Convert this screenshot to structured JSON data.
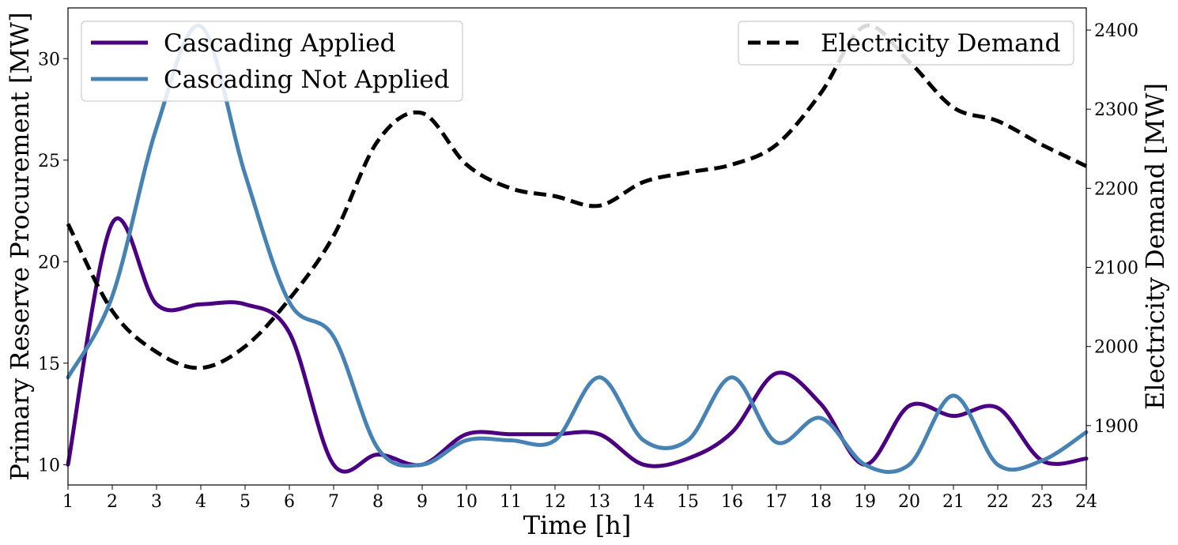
{
  "chart_data": {
    "type": "line",
    "xlabel": "Time [h]",
    "ylabel_left": "Primary Reserve Procurement [MW]",
    "ylabel_right": "Electricity Demand [MW]",
    "xlim": [
      1,
      24
    ],
    "ylim_left": [
      9,
      32.5
    ],
    "ylim_right": [
      1825,
      2428
    ],
    "x_ticks": [
      1,
      2,
      3,
      4,
      5,
      6,
      7,
      8,
      9,
      10,
      11,
      12,
      13,
      14,
      15,
      16,
      17,
      18,
      19,
      20,
      21,
      22,
      23,
      24
    ],
    "y_ticks_left": [
      10,
      15,
      20,
      25,
      30
    ],
    "y_ticks_right": [
      1900,
      2000,
      2100,
      2200,
      2300,
      2400
    ],
    "legend_left_position": "upper-left",
    "legend_right_position": "upper-right",
    "grid": false,
    "x": [
      1,
      2,
      3,
      4,
      5,
      6,
      7,
      8,
      9,
      10,
      11,
      12,
      13,
      14,
      15,
      16,
      17,
      18,
      19,
      20,
      21,
      22,
      23,
      24
    ],
    "series": [
      {
        "name": "Cascading Applied",
        "axis": "left",
        "color": "#4b0082",
        "style": "solid",
        "values": [
          10.0,
          21.9,
          17.9,
          17.9,
          17.9,
          16.5,
          10.0,
          10.5,
          10.0,
          11.5,
          11.5,
          11.5,
          11.5,
          10.0,
          10.3,
          11.6,
          14.5,
          13.0,
          10.0,
          12.9,
          12.4,
          12.8,
          10.2,
          10.3
        ]
      },
      {
        "name": "Cascading Not Applied",
        "axis": "left",
        "color": "#4682b4",
        "style": "solid",
        "values": [
          14.3,
          18.3,
          26.6,
          31.6,
          24.3,
          18.0,
          16.3,
          10.8,
          10.0,
          11.2,
          11.2,
          11.2,
          14.3,
          11.2,
          11.2,
          14.3,
          11.1,
          12.3,
          10.0,
          10.0,
          13.4,
          10.0,
          10.2,
          11.6
        ]
      },
      {
        "name": "Electricity Demand",
        "axis": "right",
        "color": "#000000",
        "style": "dashed",
        "values": [
          2155,
          2045,
          1993,
          1973,
          2000,
          2060,
          2140,
          2260,
          2295,
          2230,
          2200,
          2190,
          2178,
          2208,
          2220,
          2230,
          2255,
          2320,
          2405,
          2360,
          2302,
          2285,
          2255,
          2228
        ]
      }
    ]
  }
}
